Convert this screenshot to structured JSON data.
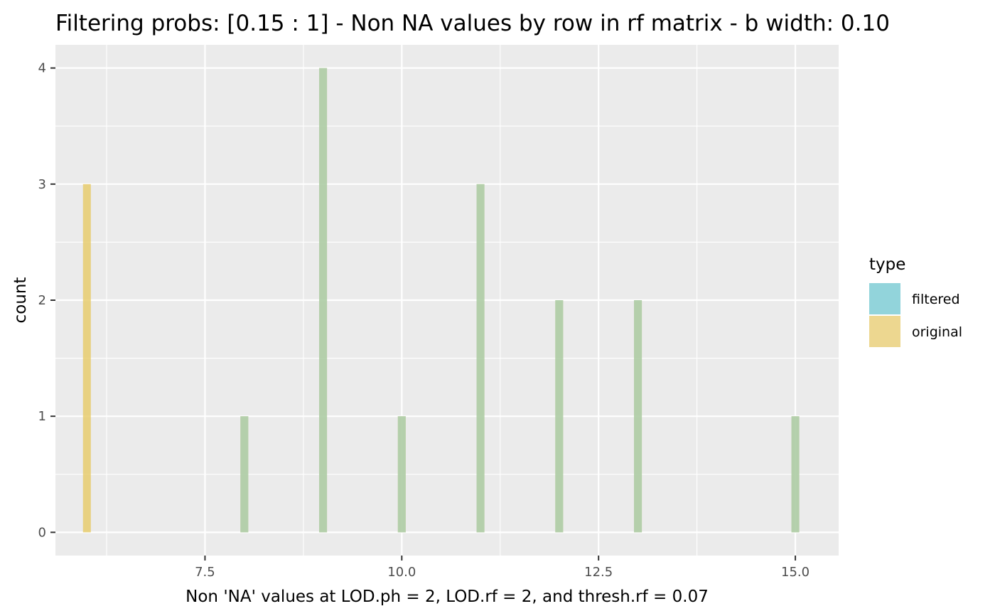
{
  "chart_data": {
    "type": "bar",
    "title": "Filtering probs: [0.15 : 1] - Non NA values by row in rf matrix - b width: 0.10",
    "xlabel": "Non 'NA' values at LOD.ph = 2, LOD.rf = 2, and thresh.rf = 0.07",
    "ylabel": "count",
    "xlim": [
      5.6,
      15.55
    ],
    "ylim": [
      -0.2,
      4.2
    ],
    "x_ticks": [
      7.5,
      10.0,
      12.5,
      15.0
    ],
    "x_tick_labels": [
      "7.5",
      "10.0",
      "12.5",
      "15.0"
    ],
    "y_ticks": [
      0,
      1,
      2,
      3,
      4
    ],
    "y_tick_labels": [
      "0",
      "1",
      "2",
      "3",
      "4"
    ],
    "bin_width": 0.1,
    "grid": true,
    "panel_background": "#ebebeb",
    "legend": {
      "title": "type",
      "position": "right",
      "entries": [
        {
          "label": "filtered",
          "color": "#7fcdd5"
        },
        {
          "label": "original",
          "color": "#ecd58a"
        }
      ]
    },
    "series": [
      {
        "name": "original",
        "color": "#e8cd6e",
        "x": [
          6,
          8,
          9,
          10,
          11,
          12,
          13,
          15
        ],
        "values": [
          3,
          1,
          4,
          1,
          3,
          2,
          2,
          1
        ]
      },
      {
        "name": "filtered",
        "color": "#7fcdd5",
        "x": [
          8,
          9,
          10,
          11,
          12,
          13,
          15
        ],
        "values": [
          1,
          4,
          1,
          3,
          2,
          2,
          1
        ]
      }
    ]
  }
}
